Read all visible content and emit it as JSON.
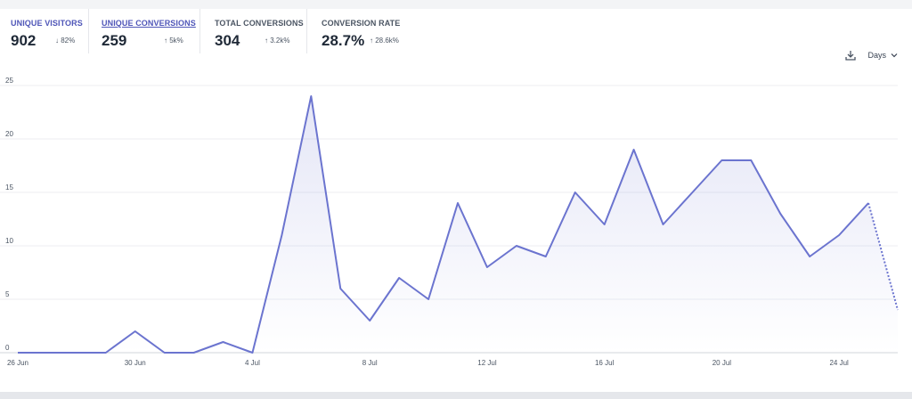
{
  "stats": [
    {
      "label": "UNIQUE VISITORS",
      "value": "902",
      "change": "↓ 82%",
      "state": "link"
    },
    {
      "label": "UNIQUE CONVERSIONS",
      "value": "259",
      "change": "↑ 5k%",
      "state": "active"
    },
    {
      "label": "TOTAL CONVERSIONS",
      "value": "304",
      "change": "↑ 3.2k%",
      "state": "normal"
    },
    {
      "label": "CONVERSION RATE",
      "value": "28.7%",
      "change": "↑ 28.6k%",
      "state": "normal"
    }
  ],
  "controls": {
    "download_icon": "download-icon",
    "period_label": "Days",
    "period_icon": "chevron-down-icon"
  },
  "chart_data": {
    "type": "line",
    "title": "",
    "xlabel": "",
    "ylabel": "",
    "ylim": [
      0,
      25
    ],
    "yticks": [
      0,
      5,
      10,
      15,
      20,
      25
    ],
    "grid": true,
    "legend": "none",
    "line_color": "#6b74cf",
    "x": [
      "26 Jun",
      "27 Jun",
      "28 Jun",
      "29 Jun",
      "30 Jun",
      "1 Jul",
      "2 Jul",
      "3 Jul",
      "4 Jul",
      "5 Jul",
      "6 Jul",
      "7 Jul",
      "8 Jul",
      "9 Jul",
      "10 Jul",
      "11 Jul",
      "12 Jul",
      "13 Jul",
      "14 Jul",
      "15 Jul",
      "16 Jul",
      "17 Jul",
      "18 Jul",
      "19 Jul",
      "20 Jul",
      "21 Jul",
      "22 Jul",
      "23 Jul",
      "24 Jul",
      "25 Jul",
      "26 Jul"
    ],
    "tick_labels": [
      "26 Jun",
      "30 Jun",
      "4 Jul",
      "8 Jul",
      "12 Jul",
      "16 Jul",
      "20 Jul",
      "24 Jul"
    ],
    "values": [
      0,
      0,
      0,
      0,
      2,
      0,
      0,
      1,
      0,
      11,
      24,
      6,
      3,
      7,
      5,
      14,
      8,
      10,
      9,
      15,
      12,
      19,
      12,
      15,
      18,
      18,
      13,
      9,
      11,
      14,
      4
    ],
    "partial_from_index": 29
  }
}
